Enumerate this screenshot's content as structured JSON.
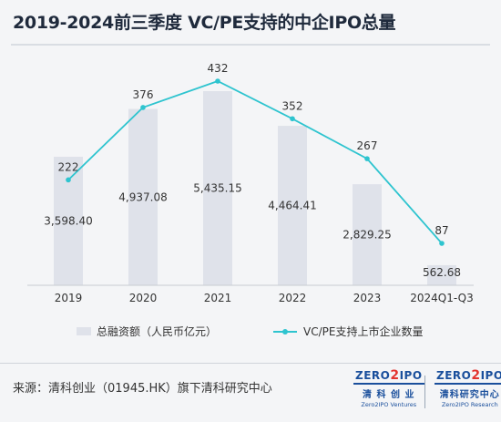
{
  "title": "2019-2024前三季度 VC/PE支持的中企IPO总量",
  "source": "来源：清科创业（01945.HK）旗下清科研究中心",
  "logos": [
    {
      "mark_pre": "ZERO",
      "mark_two": "2",
      "mark_post": "IPO",
      "cn": "清 科 创 业",
      "en": "Zero2IPO Ventures"
    },
    {
      "mark_pre": "ZERO",
      "mark_two": "2",
      "mark_post": "IPO",
      "cn": "清科研究中心",
      "en": "Zero2IPO Research"
    }
  ],
  "colors": {
    "bar": "#dfe2ea",
    "line": "#2ec4cf",
    "text": "#333333"
  },
  "chart_data": {
    "type": "bar",
    "categories": [
      "2019",
      "2020",
      "2021",
      "2022",
      "2023",
      "2024Q1-Q3"
    ],
    "series": [
      {
        "name": "总融资额（人民币亿元）",
        "type": "bar",
        "values": [
          3598.4,
          4937.08,
          5435.15,
          4464.41,
          2829.25,
          562.68
        ],
        "labels": [
          "3,598.40",
          "4,937.08",
          "5,435.15",
          "4,464.41",
          "2,829.25",
          "562.68"
        ]
      },
      {
        "name": "VC/PE支持上市企业数量",
        "type": "line",
        "values": [
          222,
          376,
          432,
          352,
          267,
          87
        ],
        "labels": [
          "222",
          "376",
          "432",
          "352",
          "267",
          "87"
        ]
      }
    ],
    "legend_position": "bottom",
    "grid": false
  }
}
